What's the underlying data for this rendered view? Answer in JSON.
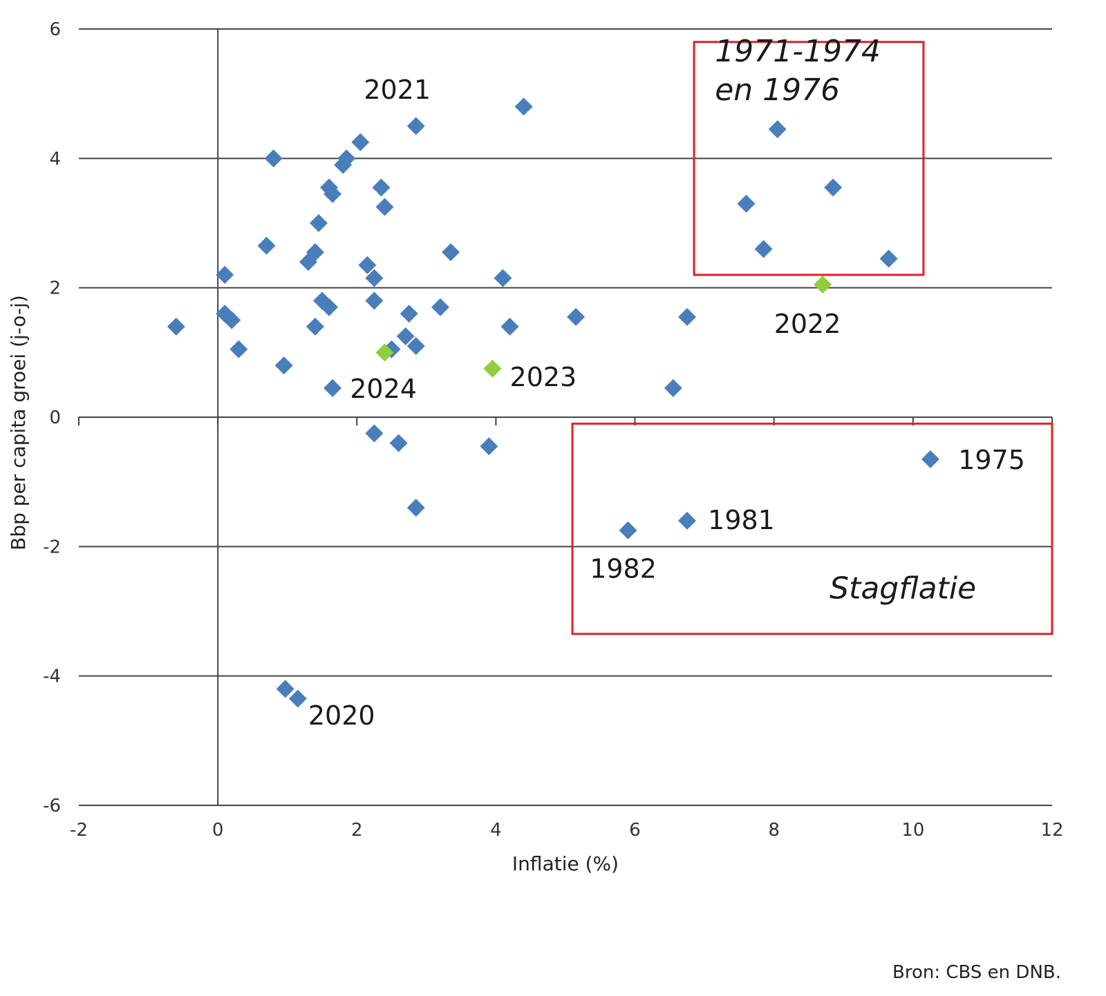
{
  "chart_data": {
    "type": "scatter",
    "xlabel": "Inflatie (%)",
    "ylabel": "Bbp per capita groei (j-o-j)",
    "xlim": [
      -2,
      12
    ],
    "ylim": [
      -6,
      6
    ],
    "xticks": [
      "-2",
      "0",
      "2",
      "4",
      "6",
      "8",
      "10",
      "12"
    ],
    "yticks": [
      "6",
      "4",
      "2",
      "0",
      "-2",
      "-4",
      "-6"
    ],
    "grid": "horizontal",
    "colors": {
      "historical": "#4a7ebb",
      "recent": "#8fce3c",
      "box": "#e0202a",
      "grid": "#444444"
    },
    "series": [
      {
        "points": [
          {
            "x": -0.6,
            "y": 1.4
          },
          {
            "x": 0.1,
            "y": 2.2
          },
          {
            "x": 0.1,
            "y": 1.6
          },
          {
            "x": 0.2,
            "y": 1.5
          },
          {
            "x": 0.3,
            "y": 1.05
          },
          {
            "x": 0.7,
            "y": 2.65
          },
          {
            "x": 0.8,
            "y": 4.0
          },
          {
            "x": 0.95,
            "y": 0.8
          },
          {
            "x": 1.3,
            "y": 2.4
          },
          {
            "x": 1.4,
            "y": 2.55
          },
          {
            "x": 1.4,
            "y": 1.4
          },
          {
            "x": 1.45,
            "y": 3.0
          },
          {
            "x": 1.5,
            "y": 1.8
          },
          {
            "x": 1.6,
            "y": 1.7
          },
          {
            "x": 1.6,
            "y": 3.55
          },
          {
            "x": 1.65,
            "y": 3.45
          },
          {
            "x": 1.65,
            "y": 0.45
          },
          {
            "x": 1.8,
            "y": 3.9
          },
          {
            "x": 1.85,
            "y": 4.0
          },
          {
            "x": 2.05,
            "y": 4.25
          },
          {
            "x": 2.15,
            "y": 2.35
          },
          {
            "x": 2.25,
            "y": 2.15
          },
          {
            "x": 2.25,
            "y": 1.8
          },
          {
            "x": 2.25,
            "y": -0.25
          },
          {
            "x": 2.35,
            "y": 3.55
          },
          {
            "x": 2.4,
            "y": 3.25
          },
          {
            "x": 2.5,
            "y": 1.05
          },
          {
            "x": 2.6,
            "y": -0.4
          },
          {
            "x": 2.7,
            "y": 1.25
          },
          {
            "x": 2.75,
            "y": 1.6
          },
          {
            "x": 2.85,
            "y": 4.5
          },
          {
            "x": 2.85,
            "y": 1.1
          },
          {
            "x": 2.85,
            "y": -1.4
          },
          {
            "x": 3.2,
            "y": 1.7
          },
          {
            "x": 3.35,
            "y": 2.55
          },
          {
            "x": 3.9,
            "y": -0.45
          },
          {
            "x": 4.1,
            "y": 2.15
          },
          {
            "x": 4.2,
            "y": 1.4
          },
          {
            "x": 4.4,
            "y": 4.8
          },
          {
            "x": 5.15,
            "y": 1.55
          },
          {
            "x": 6.55,
            "y": 0.45
          },
          {
            "x": 6.75,
            "y": 1.55
          },
          {
            "x": 0.97,
            "y": -4.2
          },
          {
            "x": 1.15,
            "y": -4.35
          },
          {
            "x": 7.6,
            "y": 3.3
          },
          {
            "x": 7.85,
            "y": 2.6
          },
          {
            "x": 8.05,
            "y": 4.45
          },
          {
            "x": 8.85,
            "y": 3.55
          },
          {
            "x": 9.65,
            "y": 2.45
          },
          {
            "x": 10.25,
            "y": -0.65
          },
          {
            "x": 6.75,
            "y": -1.6
          },
          {
            "x": 5.9,
            "y": -1.75
          }
        ]
      },
      {
        "points": [
          {
            "x": 8.7,
            "y": 2.05
          },
          {
            "x": 3.95,
            "y": 0.75
          },
          {
            "x": 2.4,
            "y": 1.0
          }
        ]
      }
    ],
    "annotations": [
      {
        "text": "2021",
        "x": 2.1,
        "y": 4.92,
        "anchor": "start"
      },
      {
        "text": "2022",
        "x": 8.0,
        "y": 1.3,
        "anchor": "start"
      },
      {
        "text": "2023",
        "x": 4.2,
        "y": 0.48,
        "anchor": "start"
      },
      {
        "text": "2024",
        "x": 1.9,
        "y": 0.3,
        "anchor": "start"
      },
      {
        "text": "2020",
        "x": 1.3,
        "y": -4.75,
        "anchor": "start"
      },
      {
        "text": "1975",
        "x": 10.65,
        "y": -0.8,
        "anchor": "start"
      },
      {
        "text": "1981",
        "x": 7.05,
        "y": -1.73,
        "anchor": "start"
      },
      {
        "text": "1982",
        "x": 5.35,
        "y": -2.48,
        "anchor": "start"
      }
    ],
    "boxes": [
      {
        "label_lines": [
          "1971-1974",
          "en 1976"
        ],
        "x0": 6.85,
        "x1": 10.15,
        "y0": 2.2,
        "y1": 5.8,
        "label_x": 7.15,
        "label_y": 5.5
      },
      {
        "label_lines": [
          "Stagflatie"
        ],
        "x0": 5.1,
        "x1": 12.0,
        "y0": -3.35,
        "y1": -0.1,
        "label_x": 8.8,
        "label_y": -2.8
      }
    ]
  },
  "source_note": "Bron: CBS en DNB."
}
